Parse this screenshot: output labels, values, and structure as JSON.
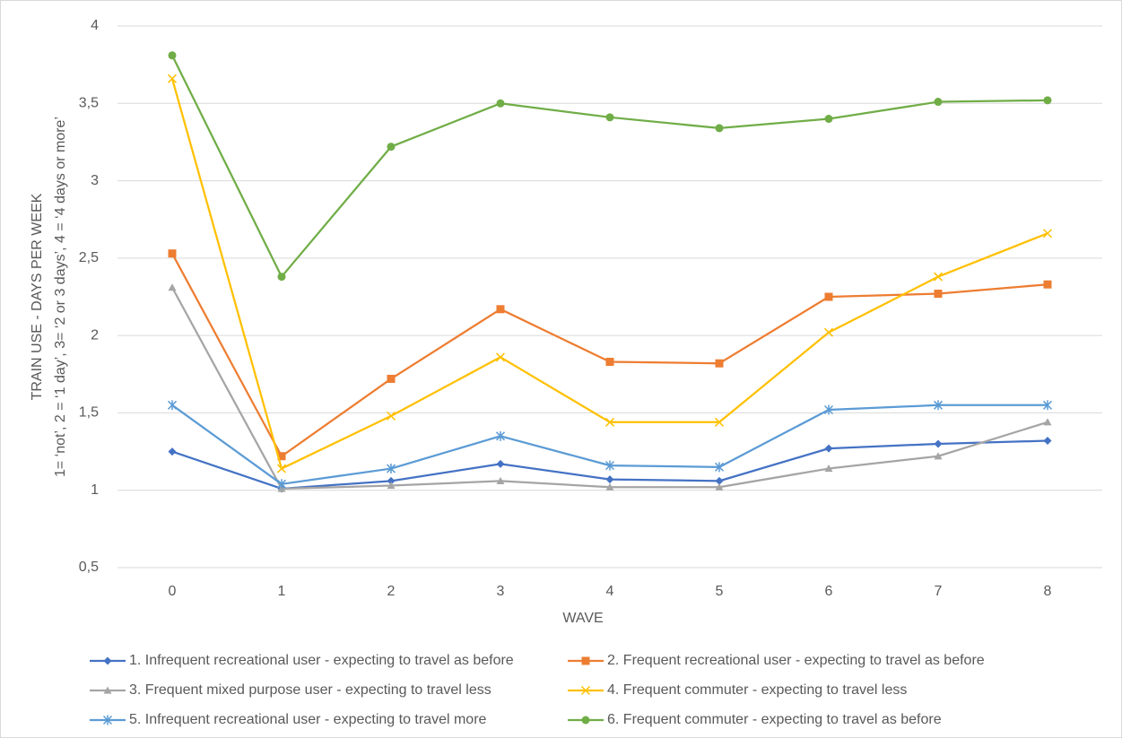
{
  "chart_data": {
    "type": "line",
    "x_label": "WAVE",
    "y_label": [
      "TRAIN USE - DAYS PER WEEK",
      "1= ‘not’, 2 = ‘1 day’, 3= ‘2 or 3 days’, 4 = ‘4 days or more’"
    ],
    "categories": [
      "0",
      "1",
      "2",
      "3",
      "4",
      "5",
      "6",
      "7",
      "8"
    ],
    "ylim": [
      0.5,
      4
    ],
    "yticks": [
      {
        "value": 0.5,
        "label": "0,5"
      },
      1,
      {
        "value": 1.5,
        "label": "1,5"
      },
      2,
      {
        "value": 2.5,
        "label": "2,5"
      },
      3,
      {
        "value": 3.5,
        "label": "3,5"
      },
      4
    ],
    "grid": true,
    "legend": "bottom",
    "series": [
      {
        "name": "1. Infrequent recreational user - expecting to travel as before",
        "color": "#4472c4",
        "marker": "diamond",
        "values": [
          1.25,
          1.01,
          1.06,
          1.17,
          1.07,
          1.06,
          1.27,
          1.3,
          1.32
        ]
      },
      {
        "name": "2. Frequent recreational user - expecting to travel as before",
        "color": "#ed7d31",
        "marker": "square",
        "values": [
          2.53,
          1.22,
          1.72,
          2.17,
          1.83,
          1.82,
          2.25,
          2.27,
          2.33
        ]
      },
      {
        "name": "3. Frequent mixed purpose user - expecting to travel less",
        "color": "#a5a5a5",
        "marker": "triangle",
        "values": [
          2.31,
          1.01,
          1.03,
          1.06,
          1.02,
          1.02,
          1.14,
          1.22,
          1.44
        ]
      },
      {
        "name": "4. Frequent commuter - expecting to travel less",
        "color": "#ffc000",
        "marker": "x",
        "values": [
          3.66,
          1.14,
          1.48,
          1.86,
          1.44,
          1.44,
          2.02,
          2.38,
          2.66
        ]
      },
      {
        "name": "5. Infrequent recreational user - expecting to travel more",
        "color": "#5b9bd5",
        "marker": "star",
        "values": [
          1.55,
          1.04,
          1.14,
          1.35,
          1.16,
          1.15,
          1.52,
          1.55,
          1.55
        ]
      },
      {
        "name": "6. Frequent commuter - expecting to travel as before",
        "color": "#70ad47",
        "marker": "circle",
        "values": [
          3.81,
          2.38,
          3.22,
          3.5,
          3.41,
          3.34,
          3.4,
          3.51,
          3.52
        ]
      }
    ]
  }
}
